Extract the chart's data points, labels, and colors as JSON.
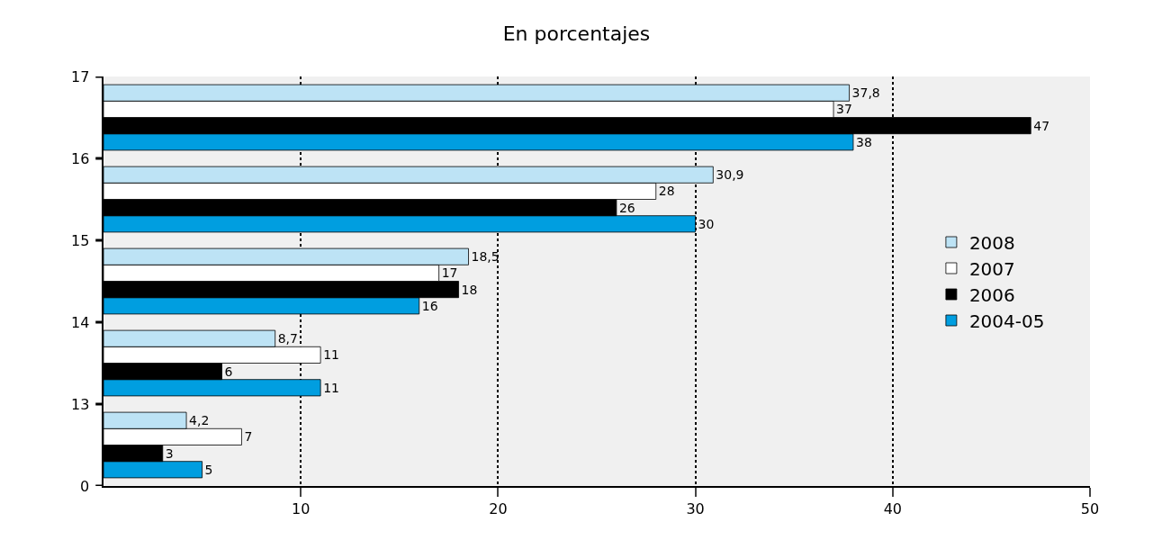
{
  "chart_data": {
    "type": "bar",
    "orientation": "horizontal",
    "title": "En porcentajes",
    "categories": [
      null,
      null,
      null,
      null,
      null
    ],
    "series": [
      {
        "name": "2008",
        "color": "#bde3f5",
        "values": [
          37.8,
          30.9,
          18.5,
          8.7,
          4.2
        ],
        "value_labels": [
          "37,8",
          "30,9",
          "18,5",
          "8,7",
          "4,2"
        ]
      },
      {
        "name": "2007",
        "color": "#ffffff",
        "values": [
          37,
          28,
          17,
          11,
          7
        ],
        "value_labels": [
          "37",
          "28",
          "17",
          "11",
          "7"
        ]
      },
      {
        "name": "2006",
        "color": "#000000",
        "values": [
          47,
          26,
          18,
          6,
          3
        ],
        "value_labels": [
          "47",
          "26",
          "18",
          "6",
          "3"
        ]
      },
      {
        "name": "2004-05",
        "color": "#009ee0",
        "values": [
          38,
          30,
          16,
          11,
          5
        ],
        "value_labels": [
          "38",
          "30",
          "16",
          "11",
          "5"
        ]
      }
    ],
    "xlim": [
      0,
      50
    ],
    "xticks": [
      10,
      20,
      30,
      40,
      50
    ],
    "annotations": [
      "17",
      "16",
      "15",
      "14",
      "13",
      "0"
    ],
    "grid": "x",
    "legend": "right"
  }
}
